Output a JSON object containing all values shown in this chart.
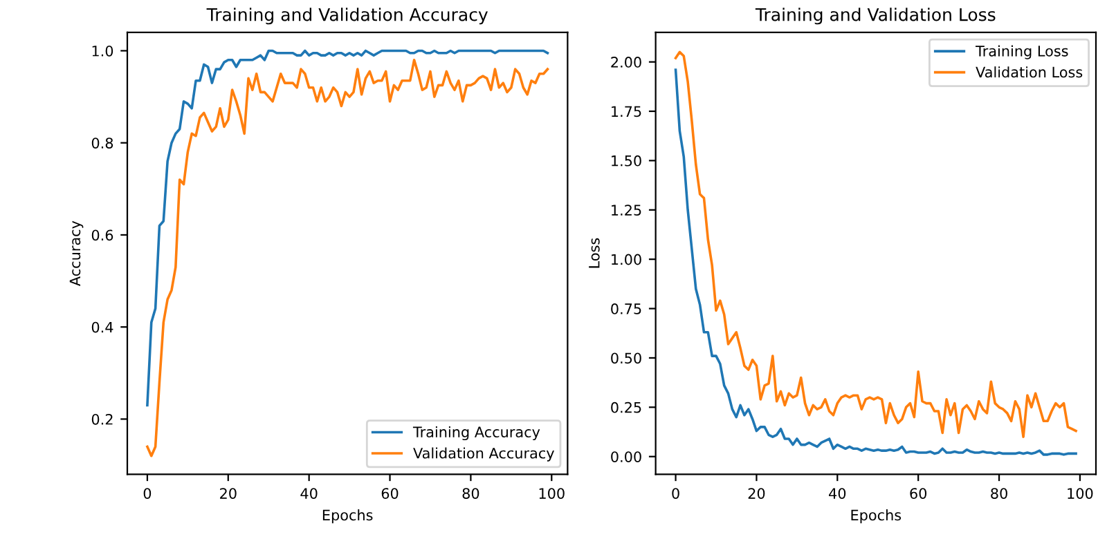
{
  "chart_data": [
    {
      "type": "line",
      "title": "Training and Validation Accuracy",
      "xlabel": "Epochs",
      "ylabel": "Accuracy",
      "x": [
        0,
        1,
        2,
        3,
        4,
        5,
        6,
        7,
        8,
        9,
        10,
        11,
        12,
        13,
        14,
        15,
        16,
        17,
        18,
        19,
        20,
        21,
        22,
        23,
        24,
        25,
        26,
        27,
        28,
        29,
        30,
        31,
        32,
        33,
        34,
        35,
        36,
        37,
        38,
        39,
        40,
        41,
        42,
        43,
        44,
        45,
        46,
        47,
        48,
        49,
        50,
        51,
        52,
        53,
        54,
        55,
        56,
        57,
        58,
        59,
        60,
        61,
        62,
        63,
        64,
        65,
        66,
        67,
        68,
        69,
        70,
        71,
        72,
        73,
        74,
        75,
        76,
        77,
        78,
        79,
        80,
        81,
        82,
        83,
        84,
        85,
        86,
        87,
        88,
        89,
        90,
        91,
        92,
        93,
        94,
        95,
        96,
        97,
        98,
        99
      ],
      "series": [
        {
          "name": "Training Accuracy",
          "color": "#1f77b4",
          "values": [
            0.23,
            0.41,
            0.44,
            0.62,
            0.63,
            0.76,
            0.8,
            0.82,
            0.83,
            0.89,
            0.885,
            0.875,
            0.935,
            0.935,
            0.97,
            0.965,
            0.93,
            0.96,
            0.96,
            0.975,
            0.98,
            0.98,
            0.965,
            0.98,
            0.98,
            0.98,
            0.98,
            0.985,
            0.99,
            0.98,
            1.0,
            1.0,
            0.995,
            0.995,
            0.995,
            0.995,
            0.995,
            0.99,
            0.99,
            1.0,
            0.99,
            0.995,
            0.995,
            0.99,
            0.99,
            0.995,
            0.99,
            0.995,
            0.995,
            0.99,
            0.995,
            0.99,
            0.995,
            0.99,
            1.0,
            0.995,
            0.99,
            0.995,
            1.0,
            1.0,
            1.0,
            1.0,
            1.0,
            1.0,
            1.0,
            0.995,
            0.995,
            1.0,
            1.0,
            0.995,
            0.995,
            1.0,
            0.995,
            0.995,
            0.995,
            1.0,
            0.995,
            1.0,
            1.0,
            1.0,
            1.0,
            1.0,
            1.0,
            1.0,
            1.0,
            1.0,
            0.995,
            1.0,
            1.0,
            1.0,
            1.0,
            1.0,
            1.0,
            1.0,
            1.0,
            1.0,
            1.0,
            1.0,
            1.0,
            0.995
          ]
        },
        {
          "name": "Validation Accuracy",
          "color": "#ff7f0e",
          "values": [
            0.14,
            0.12,
            0.14,
            0.28,
            0.41,
            0.46,
            0.48,
            0.53,
            0.72,
            0.71,
            0.78,
            0.82,
            0.815,
            0.855,
            0.865,
            0.845,
            0.825,
            0.835,
            0.875,
            0.835,
            0.85,
            0.915,
            0.89,
            0.86,
            0.82,
            0.94,
            0.915,
            0.95,
            0.91,
            0.91,
            0.9,
            0.89,
            0.92,
            0.95,
            0.93,
            0.93,
            0.93,
            0.92,
            0.96,
            0.95,
            0.92,
            0.92,
            0.89,
            0.92,
            0.89,
            0.9,
            0.92,
            0.91,
            0.88,
            0.91,
            0.9,
            0.91,
            0.96,
            0.905,
            0.94,
            0.955,
            0.93,
            0.935,
            0.935,
            0.955,
            0.89,
            0.925,
            0.915,
            0.935,
            0.935,
            0.935,
            0.98,
            0.95,
            0.915,
            0.92,
            0.955,
            0.9,
            0.925,
            0.925,
            0.955,
            0.93,
            0.915,
            0.935,
            0.89,
            0.925,
            0.925,
            0.93,
            0.94,
            0.945,
            0.94,
            0.915,
            0.96,
            0.92,
            0.93,
            0.91,
            0.92,
            0.96,
            0.95,
            0.92,
            0.905,
            0.935,
            0.93,
            0.95,
            0.95,
            0.96
          ]
        }
      ],
      "xlim": [
        -4.95,
        103.95
      ],
      "ylim": [
        0.08,
        1.04
      ],
      "xticks": [
        0,
        20,
        40,
        60,
        80,
        100
      ],
      "yticks": [
        0.2,
        0.4,
        0.6,
        0.8,
        {
          "value": 1.0,
          "label": "1.0"
        }
      ],
      "legend": "lower right",
      "grid": false
    },
    {
      "type": "line",
      "title": "Training and Validation Loss",
      "xlabel": "Epochs",
      "ylabel": "Loss",
      "x": [
        0,
        1,
        2,
        3,
        4,
        5,
        6,
        7,
        8,
        9,
        10,
        11,
        12,
        13,
        14,
        15,
        16,
        17,
        18,
        19,
        20,
        21,
        22,
        23,
        24,
        25,
        26,
        27,
        28,
        29,
        30,
        31,
        32,
        33,
        34,
        35,
        36,
        37,
        38,
        39,
        40,
        41,
        42,
        43,
        44,
        45,
        46,
        47,
        48,
        49,
        50,
        51,
        52,
        53,
        54,
        55,
        56,
        57,
        58,
        59,
        60,
        61,
        62,
        63,
        64,
        65,
        66,
        67,
        68,
        69,
        70,
        71,
        72,
        73,
        74,
        75,
        76,
        77,
        78,
        79,
        80,
        81,
        82,
        83,
        84,
        85,
        86,
        87,
        88,
        89,
        90,
        91,
        92,
        93,
        94,
        95,
        96,
        97,
        98,
        99
      ],
      "series": [
        {
          "name": "Training Loss",
          "color": "#1f77b4",
          "values": [
            1.96,
            1.65,
            1.52,
            1.25,
            1.05,
            0.85,
            0.77,
            0.63,
            0.63,
            0.51,
            0.51,
            0.47,
            0.36,
            0.32,
            0.24,
            0.2,
            0.26,
            0.21,
            0.24,
            0.19,
            0.13,
            0.15,
            0.15,
            0.11,
            0.1,
            0.11,
            0.14,
            0.09,
            0.09,
            0.06,
            0.09,
            0.06,
            0.06,
            0.07,
            0.06,
            0.05,
            0.07,
            0.08,
            0.09,
            0.04,
            0.06,
            0.05,
            0.04,
            0.05,
            0.04,
            0.04,
            0.03,
            0.04,
            0.035,
            0.03,
            0.035,
            0.03,
            0.03,
            0.035,
            0.03,
            0.035,
            0.05,
            0.02,
            0.025,
            0.025,
            0.02,
            0.02,
            0.02,
            0.025,
            0.015,
            0.02,
            0.04,
            0.02,
            0.02,
            0.025,
            0.02,
            0.02,
            0.035,
            0.025,
            0.02,
            0.02,
            0.025,
            0.02,
            0.02,
            0.015,
            0.02,
            0.015,
            0.015,
            0.015,
            0.015,
            0.02,
            0.015,
            0.02,
            0.015,
            0.02,
            0.03,
            0.01,
            0.01,
            0.015,
            0.015,
            0.015,
            0.01,
            0.015,
            0.015,
            0.015
          ]
        },
        {
          "name": "Validation Loss",
          "color": "#ff7f0e",
          "values": [
            2.02,
            2.05,
            2.03,
            1.9,
            1.7,
            1.48,
            1.33,
            1.31,
            1.1,
            0.97,
            0.74,
            0.79,
            0.72,
            0.57,
            0.6,
            0.63,
            0.55,
            0.46,
            0.44,
            0.49,
            0.46,
            0.29,
            0.36,
            0.37,
            0.51,
            0.28,
            0.33,
            0.26,
            0.32,
            0.3,
            0.31,
            0.4,
            0.27,
            0.21,
            0.26,
            0.24,
            0.25,
            0.29,
            0.23,
            0.21,
            0.27,
            0.3,
            0.31,
            0.3,
            0.31,
            0.31,
            0.24,
            0.29,
            0.3,
            0.29,
            0.3,
            0.29,
            0.17,
            0.27,
            0.21,
            0.17,
            0.19,
            0.25,
            0.27,
            0.2,
            0.43,
            0.28,
            0.27,
            0.27,
            0.23,
            0.23,
            0.12,
            0.29,
            0.21,
            0.27,
            0.12,
            0.24,
            0.26,
            0.23,
            0.19,
            0.28,
            0.24,
            0.22,
            0.38,
            0.27,
            0.25,
            0.24,
            0.22,
            0.18,
            0.28,
            0.24,
            0.1,
            0.31,
            0.25,
            0.32,
            0.25,
            0.18,
            0.18,
            0.23,
            0.27,
            0.25,
            0.27,
            0.15,
            0.14,
            0.13
          ]
        }
      ],
      "xlim": [
        -4.95,
        103.95
      ],
      "ylim": [
        -0.09,
        2.15
      ],
      "xticks": [
        0,
        20,
        40,
        60,
        80,
        100
      ],
      "yticks": [
        {
          "value": 0,
          "label": "0.00"
        },
        {
          "value": 0.25,
          "label": "0.25"
        },
        {
          "value": 0.5,
          "label": "0.50"
        },
        {
          "value": 0.75,
          "label": "0.75"
        },
        {
          "value": 1.0,
          "label": "1.00"
        },
        {
          "value": 1.25,
          "label": "1.25"
        },
        {
          "value": 1.5,
          "label": "1.50"
        },
        {
          "value": 1.75,
          "label": "1.75"
        },
        {
          "value": 2.0,
          "label": "2.00"
        }
      ],
      "legend": "upper right",
      "grid": false
    }
  ]
}
